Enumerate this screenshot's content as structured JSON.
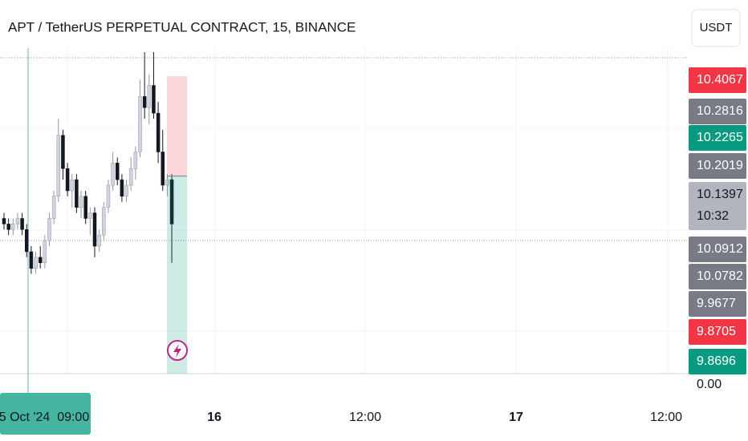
{
  "chart_data": {
    "type": "candlestick",
    "title": "APT / TetherUS PERPETUAL CONTRACT, 15, BINANCE",
    "currency_button": "USDT",
    "ylim": [
      9.87,
      10.44
    ],
    "up_color": "#d1d4dc",
    "down_color": "#131722",
    "open": [
      10.15,
      10.14,
      10.13,
      10.14,
      10.15,
      10.13,
      10.09,
      10.06,
      10.08,
      10.07,
      10.11,
      10.15,
      10.19,
      10.3,
      10.24,
      10.2,
      10.22,
      10.17,
      10.19,
      10.15,
      10.16,
      10.1,
      10.12,
      10.17,
      10.21,
      10.25,
      10.22,
      10.19,
      10.21,
      10.24,
      10.27,
      10.37,
      10.35,
      10.39,
      10.34,
      10.27,
      10.21,
      10.22
    ],
    "high": [
      10.16,
      10.15,
      10.15,
      10.16,
      10.16,
      10.14,
      10.1,
      10.09,
      10.1,
      10.12,
      10.16,
      10.2,
      10.33,
      10.31,
      10.25,
      10.23,
      10.23,
      10.2,
      10.2,
      10.17,
      10.17,
      10.13,
      10.18,
      10.22,
      10.27,
      10.26,
      10.23,
      10.22,
      10.26,
      10.28,
      10.4,
      10.45,
      10.41,
      10.45,
      10.36,
      10.31,
      10.23,
      10.23
    ],
    "low": [
      10.13,
      10.12,
      10.12,
      10.13,
      10.12,
      10.08,
      10.05,
      10.05,
      10.06,
      10.06,
      10.1,
      10.14,
      10.18,
      10.22,
      10.19,
      10.17,
      10.16,
      10.15,
      10.14,
      10.12,
      10.08,
      10.09,
      10.11,
      10.16,
      10.2,
      10.21,
      10.18,
      10.18,
      10.2,
      10.22,
      10.26,
      10.33,
      10.32,
      10.33,
      10.25,
      10.2,
      10.19,
      10.07
    ],
    "close": [
      10.14,
      10.13,
      10.14,
      10.15,
      10.13,
      10.09,
      10.06,
      10.08,
      10.07,
      10.11,
      10.15,
      10.19,
      10.3,
      10.24,
      10.2,
      10.22,
      10.17,
      10.19,
      10.15,
      10.16,
      10.1,
      10.12,
      10.17,
      10.21,
      10.25,
      10.22,
      10.19,
      10.21,
      10.24,
      10.27,
      10.37,
      10.35,
      10.39,
      10.34,
      10.27,
      10.21,
      10.22,
      10.14
    ],
    "position": {
      "entry": 10.2265,
      "stop": 10.4067,
      "target": 9.8705,
      "stop_color": "#f23645",
      "target_color": "#089981"
    },
    "price_labels": [
      {
        "value": 10.4067,
        "color": "#f23645"
      },
      {
        "value": 10.2816,
        "color": "#787b86"
      },
      {
        "value": 10.2265,
        "color": "#089981"
      },
      {
        "value": 10.2019,
        "color": "#787b86"
      },
      {
        "value": 10.1397,
        "color": "#b2b5be",
        "countdown": "10:32"
      },
      {
        "value": 10.0912,
        "color": "#787b86"
      },
      {
        "value": 10.0782,
        "color": "#787b86"
      },
      {
        "value": 9.9677,
        "color": "#787b86"
      },
      {
        "value": 9.8705,
        "color": "#f23645"
      },
      {
        "value": 9.8696,
        "color": "#089981"
      }
    ],
    "volume_label": "0.00",
    "time_labels": [
      "5 Oct '24  09:00",
      "16",
      "12:00",
      "17",
      "12:00"
    ]
  }
}
